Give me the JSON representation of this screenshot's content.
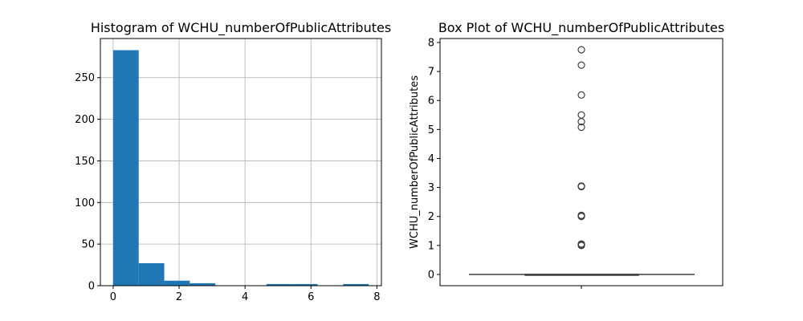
{
  "chart_data": [
    {
      "type": "bar",
      "title": "Histogram of WCHU_numberOfPublicAttributes",
      "xlabel": "",
      "ylabel": "",
      "bins": [
        {
          "x0": 0.0,
          "x1": 0.775,
          "count": 283
        },
        {
          "x0": 0.775,
          "x1": 1.55,
          "count": 27
        },
        {
          "x0": 1.55,
          "x1": 2.325,
          "count": 6
        },
        {
          "x0": 2.325,
          "x1": 3.1,
          "count": 3
        },
        {
          "x0": 3.1,
          "x1": 3.875,
          "count": 0
        },
        {
          "x0": 3.875,
          "x1": 4.65,
          "count": 0
        },
        {
          "x0": 4.65,
          "x1": 5.425,
          "count": 2
        },
        {
          "x0": 5.425,
          "x1": 6.2,
          "count": 2
        },
        {
          "x0": 6.2,
          "x1": 6.975,
          "count": 0
        },
        {
          "x0": 6.975,
          "x1": 7.75,
          "count": 2
        }
      ],
      "xlim": [
        -0.3875,
        8.1375
      ],
      "ylim": [
        0,
        297
      ],
      "xticks": [
        0,
        2,
        4,
        6,
        8
      ],
      "yticks": [
        0,
        50,
        100,
        150,
        200,
        250
      ],
      "grid": true,
      "bar_color": "#1f77b4"
    },
    {
      "type": "box",
      "title": "Box Plot of WCHU_numberOfPublicAttributes",
      "xlabel": "",
      "ylabel": "WCHU_numberOfPublicAttributes",
      "ylim": [
        -0.3875,
        8.1375
      ],
      "yticks": [
        0,
        1,
        2,
        3,
        4,
        5,
        6,
        7,
        8
      ],
      "box": {
        "q1": 0,
        "median": 0,
        "q3": 0,
        "whisker_low": 0,
        "whisker_high": 0
      },
      "outliers": [
        1,
        1.02,
        1.04,
        1.05,
        2,
        2.02,
        2.04,
        3.03,
        3.05,
        5.08,
        5.27,
        5.5,
        6.19,
        7.22,
        7.75
      ],
      "grid": false
    }
  ]
}
